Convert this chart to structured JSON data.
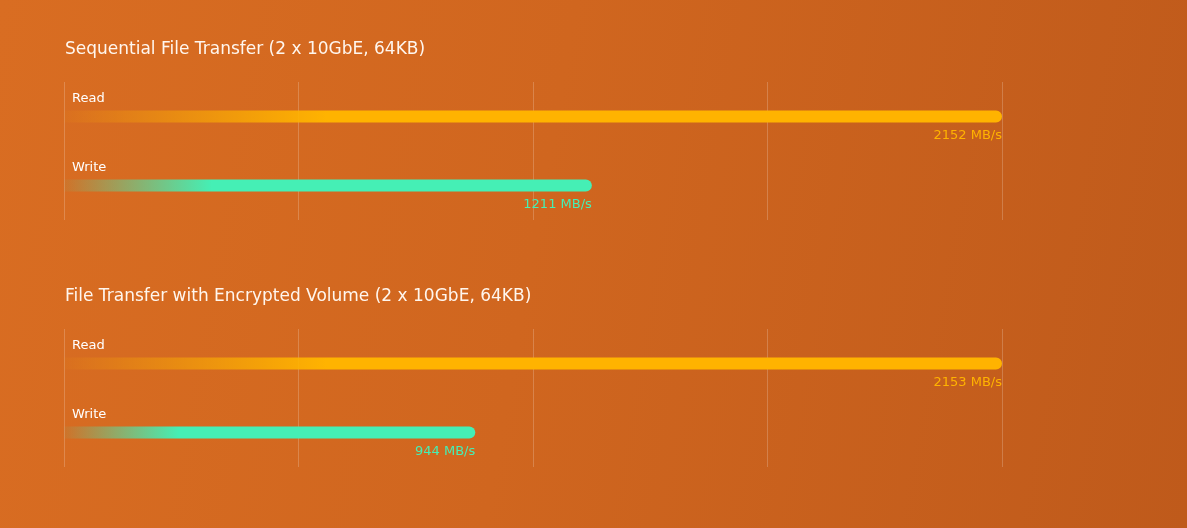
{
  "chart_data": [
    {
      "type": "bar",
      "orientation": "horizontal",
      "title": "Sequential File Transfer (2 x 10GbE, 64KB)",
      "categories": [
        "Read",
        "Write"
      ],
      "values": [
        2152,
        1211
      ],
      "colors": [
        "#ffb300",
        "#45efb5"
      ],
      "value_labels": [
        "2152 MB/s",
        "1211 MB/s"
      ],
      "xlim": [
        0,
        2152
      ],
      "xticks": [
        {
          "value": 0,
          "label": null
        },
        {
          "value": 538,
          "label": null
        },
        {
          "value": 1076,
          "label": null
        },
        {
          "value": 1614,
          "label": null
        },
        {
          "value": 2152,
          "label": null
        }
      ],
      "grid": "x",
      "tick_labels": "y"
    },
    {
      "type": "bar",
      "orientation": "horizontal",
      "title": "File Transfer with Encrypted Volume (2 x 10GbE, 64KB)",
      "categories": [
        "Read",
        "Write"
      ],
      "values": [
        2153,
        944
      ],
      "colors": [
        "#ffb300",
        "#45efb5"
      ],
      "value_labels": [
        "2153 MB/s",
        "944 MB/s"
      ],
      "xlim": [
        0,
        2153
      ],
      "xticks": [
        {
          "value": 0,
          "label": null
        },
        {
          "value": 538,
          "label": null
        },
        {
          "value": 1077,
          "label": null
        },
        {
          "value": 1615,
          "label": null
        },
        {
          "value": 2153,
          "label": null
        }
      ],
      "grid": "x",
      "tick_labels": "y"
    }
  ]
}
